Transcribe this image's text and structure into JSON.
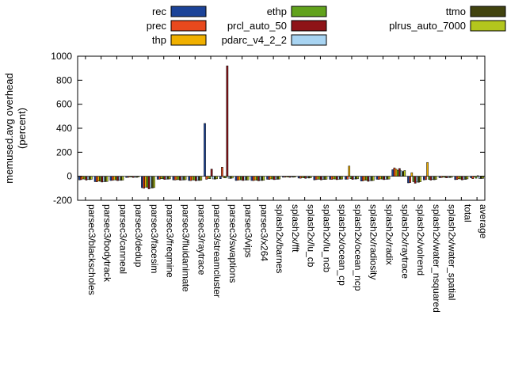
{
  "figure": {
    "background": "#ffffff",
    "border_color": "#000000"
  },
  "chart_data": {
    "type": "bar",
    "title": "",
    "ylabel_lines": [
      "memused.avg overhead",
      "(percent)"
    ],
    "xlabel": "",
    "ylim": [
      -200,
      1000
    ],
    "yticks": [
      -200,
      0,
      200,
      400,
      600,
      800,
      1000
    ],
    "grid": false,
    "legend_position": "top",
    "legend_columns": [
      [
        "rec",
        "prec",
        "thp"
      ],
      [
        "ethp",
        "prcl_auto_50",
        "pdarc_v4_2_2"
      ],
      [
        "ttmo",
        "plrus_auto_7000"
      ]
    ],
    "categories": [
      "parsec3/blackscholes",
      "parsec3/bodytrack",
      "parsec3/canneal",
      "parsec3/dedup",
      "parsec3/facesim",
      "parsec3/freqmine",
      "parsec3/fluidanimate",
      "parsec3/raytrace",
      "parsec3/streamcluster",
      "parsec3/swaptions",
      "parsec3/vips",
      "parsec3/x264",
      "splash2x/barnes",
      "splash2x/fft",
      "splash2x/lu_cb",
      "splash2x/lu_ncb",
      "splash2x/ocean_cp",
      "splash2x/ocean_ncp",
      "splash2x/radiosity",
      "splash2x/radix",
      "splash2x/raytrace",
      "splash2x/volrend",
      "splash2x/water_nsquared",
      "splash2x/water_spatial",
      "total",
      "average"
    ],
    "series": [
      {
        "name": "rec",
        "color": "#1b4398",
        "values": [
          -30,
          -45,
          -35,
          -10,
          -95,
          -25,
          -30,
          -35,
          440,
          -20,
          -35,
          -35,
          -25,
          -8,
          -15,
          -30,
          -25,
          -25,
          -40,
          -25,
          55,
          -55,
          -30,
          -12,
          -28,
          -12
        ]
      },
      {
        "name": "prec",
        "color": "#e8491d",
        "values": [
          -28,
          -46,
          -34,
          -9,
          -100,
          -24,
          -31,
          -36,
          -25,
          75,
          -33,
          -36,
          -26,
          -8,
          -16,
          -28,
          -26,
          -24,
          -38,
          -26,
          70,
          -52,
          -28,
          -11,
          -27,
          -20
        ]
      },
      {
        "name": "thp",
        "color": "#f0b000",
        "values": [
          -22,
          -40,
          -30,
          -6,
          -90,
          -20,
          -28,
          -30,
          -18,
          -12,
          -30,
          -32,
          -22,
          -6,
          -12,
          -24,
          -22,
          85,
          -32,
          -22,
          60,
          30,
          115,
          -8,
          -20,
          -6
        ]
      },
      {
        "name": "ethp",
        "color": "#61a21c",
        "values": [
          -24,
          -42,
          -31,
          -7,
          -92,
          -21,
          -28,
          -32,
          -20,
          -14,
          -30,
          -33,
          -23,
          -7,
          -13,
          -25,
          -23,
          -20,
          -34,
          -23,
          50,
          -45,
          -26,
          -9,
          -23,
          -16
        ]
      },
      {
        "name": "prcl_auto_50",
        "color": "#8e1317",
        "values": [
          -32,
          -48,
          -36,
          -10,
          -105,
          -26,
          -33,
          -38,
          60,
          920,
          -35,
          -38,
          -28,
          -9,
          -17,
          -30,
          -28,
          -26,
          -42,
          -28,
          65,
          -58,
          -32,
          -13,
          -30,
          5
        ]
      },
      {
        "name": "pdarc_v4_2_2",
        "color": "#a8d4f2",
        "values": [
          -26,
          -44,
          -33,
          -8,
          -96,
          -23,
          -30,
          -34,
          -22,
          -16,
          -31,
          -34,
          -24,
          -7,
          -14,
          -26,
          -24,
          -22,
          -36,
          -24,
          45,
          -48,
          -27,
          -10,
          -24,
          -18
        ]
      },
      {
        "name": "ttmo",
        "color": "#41430f",
        "values": [
          -28,
          -45,
          -34,
          -9,
          -98,
          -24,
          -31,
          -35,
          -24,
          -18,
          -32,
          -35,
          -25,
          -8,
          -15,
          -27,
          -25,
          -23,
          -37,
          -25,
          40,
          -50,
          -29,
          -11,
          -26,
          -19
        ]
      },
      {
        "name": "plrus_auto_7000",
        "color": "#b3c61d",
        "values": [
          -25,
          -43,
          -32,
          -7,
          -94,
          -22,
          -29,
          -33,
          -21,
          -15,
          -31,
          -33,
          -23,
          -7,
          -13,
          -25,
          -23,
          -21,
          -35,
          -23,
          48,
          -46,
          -26,
          -9,
          -22,
          -17
        ]
      }
    ]
  }
}
